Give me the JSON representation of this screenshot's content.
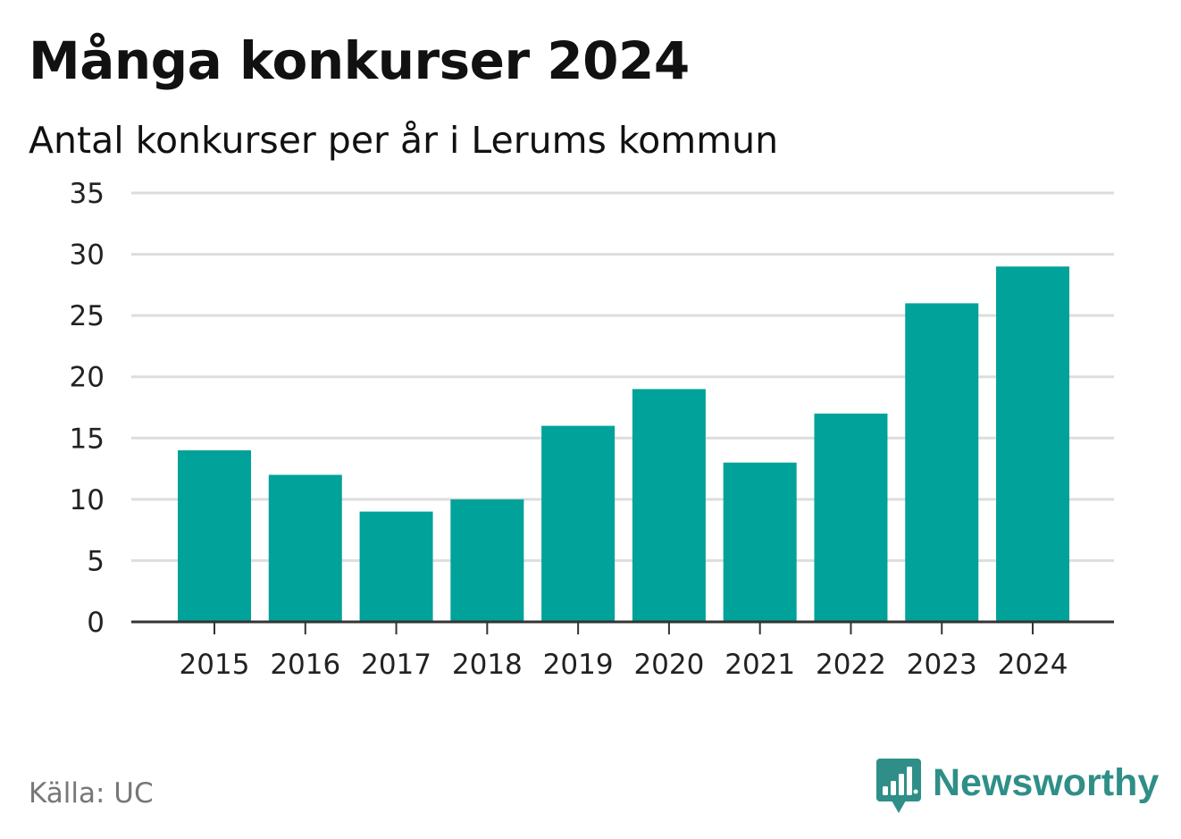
{
  "header": {
    "title": "Många konkurser 2024",
    "subtitle": "Antal konkurser per år i Lerums kommun"
  },
  "footer": {
    "source": "Källa: UC",
    "brand_name": "Newsworthy",
    "brand_icon": "newsworthy-logo-icon"
  },
  "colors": {
    "bar": "#00a29a",
    "gridline": "#dddddd",
    "axis": "#333333",
    "brand": "#2f8f88",
    "source_text": "#777777"
  },
  "chart_data": {
    "type": "bar",
    "title": "Många konkurser 2024",
    "subtitle": "Antal konkurser per år i Lerums kommun",
    "xlabel": "",
    "ylabel": "",
    "categories": [
      "2015",
      "2016",
      "2017",
      "2018",
      "2019",
      "2020",
      "2021",
      "2022",
      "2023",
      "2024"
    ],
    "values": [
      14,
      12,
      9,
      10,
      16,
      19,
      13,
      17,
      26,
      29
    ],
    "ylim": [
      0,
      35
    ],
    "yticks": [
      0,
      5,
      10,
      15,
      20,
      25,
      30,
      35
    ],
    "grid": true,
    "legend": "none"
  }
}
